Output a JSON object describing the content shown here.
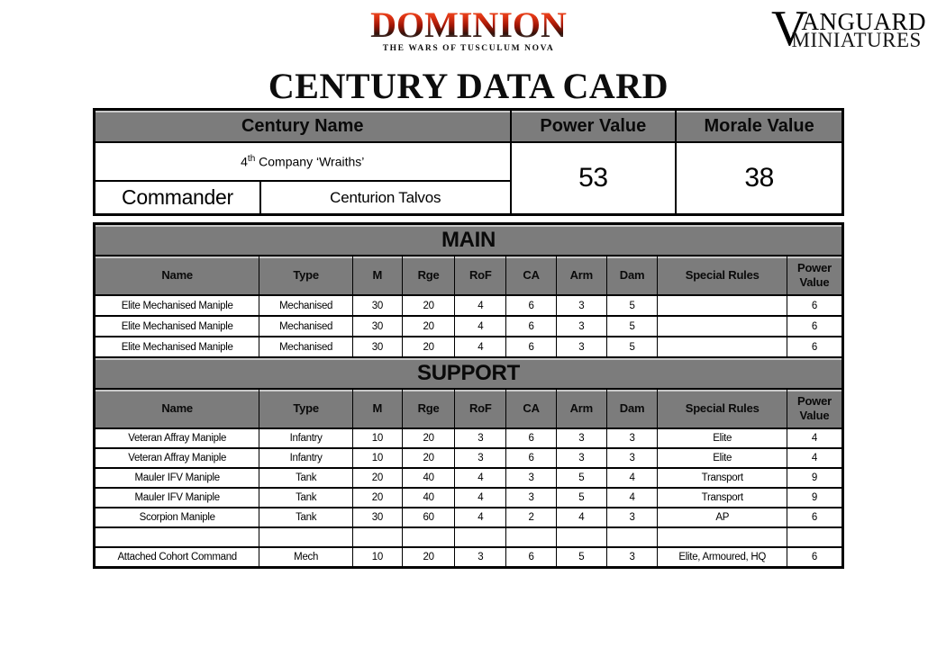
{
  "title": "CENTURY DATA CARD",
  "logos": {
    "dominion": {
      "name": "DOMINION",
      "tagline": "THE WARS OF TUSCULUM NOVA"
    },
    "vanguard": {
      "initial": "V",
      "name_rest": "ANGUARD",
      "line2": "MINIATURES"
    }
  },
  "colors": {
    "header_gray": "#7c7c7c",
    "table_border": "#000000",
    "dominion_red": "#d92f12",
    "vanguard_red": "#c13a32"
  },
  "century_table": {
    "headers": {
      "century_name": "Century Name",
      "power_value": "Power Value",
      "morale_value": "Morale Value"
    },
    "century_name": {
      "number": "4",
      "ordinal": "th",
      "rest": " Company ‘Wraiths’"
    },
    "commander_label": "Commander",
    "commander_name": "Centurion Talvos",
    "power_value": "53",
    "morale_value": "38"
  },
  "unit_table": {
    "columns": [
      "Name",
      "Type",
      "M",
      "Rge",
      "RoF",
      "CA",
      "Arm",
      "Dam",
      "Special Rules",
      "Power Value"
    ],
    "column_widths_pct": [
      22.06,
      12.47,
      6.59,
      7.07,
      6.83,
      6.71,
      6.71,
      6.83,
      17.27,
      7.46
    ],
    "sections": [
      {
        "title": "MAIN",
        "rows": [
          [
            "Elite Mechanised Maniple",
            "Mechanised",
            "30",
            "20",
            "4",
            "6",
            "3",
            "5",
            "",
            "6"
          ],
          [
            "Elite Mechanised Maniple",
            "Mechanised",
            "30",
            "20",
            "4",
            "6",
            "3",
            "5",
            "",
            "6"
          ],
          [
            "Elite Mechanised Maniple",
            "Mechanised",
            "30",
            "20",
            "4",
            "6",
            "3",
            "5",
            "",
            "6"
          ]
        ]
      },
      {
        "title": "SUPPORT",
        "rows": [
          [
            "Veteran Affray Maniple",
            "Infantry",
            "10",
            "20",
            "3",
            "6",
            "3",
            "3",
            "Elite",
            "4"
          ],
          [
            "Veteran Affray Maniple",
            "Infantry",
            "10",
            "20",
            "3",
            "6",
            "3",
            "3",
            "Elite",
            "4"
          ],
          [
            "Mauler IFV Maniple",
            "Tank",
            "20",
            "40",
            "4",
            "3",
            "5",
            "4",
            "Transport",
            "9"
          ],
          [
            "Mauler IFV Maniple",
            "Tank",
            "20",
            "40",
            "4",
            "3",
            "5",
            "4",
            "Transport",
            "9"
          ],
          [
            "Scorpion Maniple",
            "Tank",
            "30",
            "60",
            "4",
            "2",
            "4",
            "3",
            "AP",
            "6"
          ],
          [
            "",
            "",
            "",
            "",
            "",
            "",
            "",
            "",
            "",
            ""
          ],
          [
            "Attached Cohort Command",
            "Mech",
            "10",
            "20",
            "3",
            "6",
            "5",
            "3",
            "Elite, Armoured, HQ",
            "6"
          ]
        ]
      }
    ]
  }
}
